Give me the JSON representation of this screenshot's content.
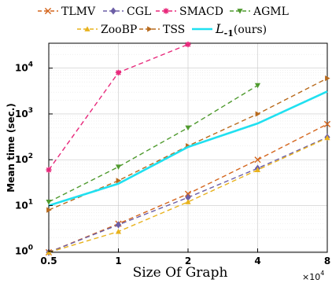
{
  "chart_data": {
    "type": "line",
    "xlabel": "Size Of Graph",
    "ylabel": "Mean time (sec.)",
    "x_multiplier": {
      "base": "×10",
      "exp": "4"
    },
    "x_ticks": [
      {
        "value": 0.5,
        "label": "0.5"
      },
      {
        "value": 1,
        "label": "1"
      },
      {
        "value": 2,
        "label": "2"
      },
      {
        "value": 4,
        "label": "4"
      },
      {
        "value": 8,
        "label": "8"
      }
    ],
    "y_ticks": [
      {
        "value": 1,
        "exp": "0"
      },
      {
        "value": 10,
        "exp": "1"
      },
      {
        "value": 100,
        "exp": "2"
      },
      {
        "value": 1000,
        "exp": "3"
      },
      {
        "value": 10000,
        "exp": "4"
      }
    ],
    "y_scale": "log",
    "x_scale": "log",
    "xlim": [
      0.5,
      8
    ],
    "ylim": [
      0.95,
      35000
    ],
    "grid": true,
    "legend": "top",
    "series": [
      {
        "name": "TLMV",
        "color": "#d4651c",
        "marker": "x",
        "dash": "6,4",
        "width": 1.4,
        "x": [
          0.5,
          1,
          2,
          4,
          8
        ],
        "y": [
          0.95,
          4.0,
          18,
          100,
          600
        ]
      },
      {
        "name": "CGL",
        "color": "#6c5ea6",
        "marker": "diamond",
        "dash": "6,4",
        "width": 1.4,
        "x": [
          0.5,
          1,
          2,
          4,
          8
        ],
        "y": [
          0.95,
          3.8,
          15,
          65,
          310
        ]
      },
      {
        "name": "SMACD",
        "color": "#e8287b",
        "marker": "star",
        "dash": "6,4",
        "width": 1.4,
        "x": [
          0.5,
          1,
          2
        ],
        "y": [
          60,
          8000,
          33000
        ]
      },
      {
        "name": "AGML",
        "color": "#4f9a2e",
        "marker": "triangle-down",
        "dash": "6,4",
        "width": 1.4,
        "x": [
          0.5,
          1,
          2,
          4
        ],
        "y": [
          12,
          70,
          500,
          4200
        ]
      },
      {
        "name": "ZooBP",
        "color": "#e8b21c",
        "marker": "triangle-up",
        "dash": "6,4",
        "width": 1.4,
        "x": [
          0.5,
          1,
          2,
          4,
          8
        ],
        "y": [
          0.95,
          2.7,
          12,
          60,
          300
        ]
      },
      {
        "name": "TSS",
        "color": "#b86a1c",
        "marker": "triangle-right",
        "dash": "6,4",
        "width": 1.4,
        "x": [
          0.5,
          1,
          2,
          4,
          8
        ],
        "y": [
          8,
          35,
          200,
          1000,
          6000
        ]
      },
      {
        "name": "L-1(ours)",
        "label_main": "L",
        "label_sub": "-1",
        "label_rest": "(ours)",
        "color": "#20e0f0",
        "marker": "none",
        "dash": "",
        "width": 2.6,
        "x": [
          0.5,
          1,
          2,
          4,
          8
        ],
        "y": [
          10,
          30,
          190,
          620,
          3100
        ]
      }
    ]
  }
}
